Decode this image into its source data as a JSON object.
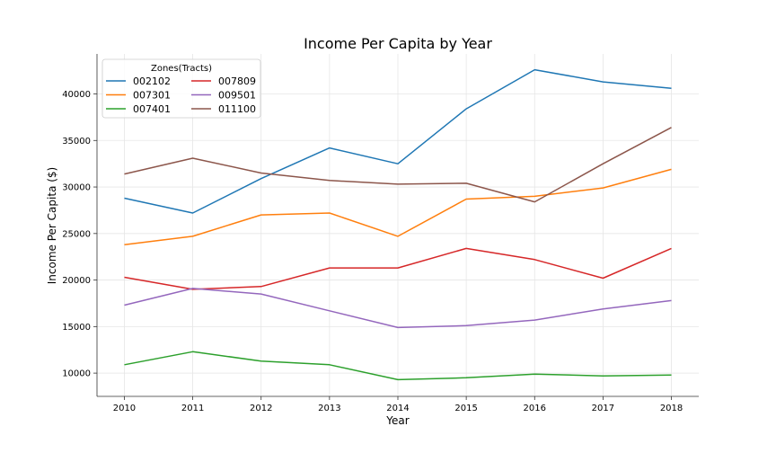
{
  "chart_data": {
    "type": "line",
    "title": "Income Per Capita by Year",
    "xlabel": "Year",
    "ylabel": "Income Per Capita ($)",
    "x": [
      2010,
      2011,
      2012,
      2013,
      2014,
      2015,
      2016,
      2017,
      2018
    ],
    "x_tick_labels": [
      "2010",
      "2011",
      "2012",
      "2013",
      "2014",
      "2015",
      "2016",
      "2017",
      "2018"
    ],
    "y_ticks": [
      10000,
      15000,
      20000,
      25000,
      30000,
      35000,
      40000
    ],
    "y_tick_labels": [
      "10000",
      "15000",
      "20000",
      "25000",
      "30000",
      "35000",
      "40000"
    ],
    "xlim": [
      2009.6,
      2018.4
    ],
    "ylim": [
      7500,
      44300
    ],
    "grid": true,
    "legend": {
      "title": "Zones(Tracts)",
      "placement": "top-left",
      "columns": 2
    },
    "series": [
      {
        "name": "002102",
        "color": "#1f77b4",
        "values": [
          28800,
          27200,
          30900,
          34200,
          32500,
          38400,
          42600,
          41300,
          40600
        ]
      },
      {
        "name": "007301",
        "color": "#ff7f0e",
        "values": [
          23800,
          24700,
          27000,
          27200,
          24700,
          28700,
          29000,
          29900,
          31900
        ]
      },
      {
        "name": "007401",
        "color": "#2ca02c",
        "values": [
          10900,
          12300,
          11300,
          10900,
          9300,
          9500,
          9900,
          9700,
          9800
        ]
      },
      {
        "name": "007809",
        "color": "#d62728",
        "values": [
          20300,
          19000,
          19300,
          21300,
          21300,
          23400,
          22200,
          20200,
          23400
        ]
      },
      {
        "name": "009501",
        "color": "#9467bd",
        "values": [
          17300,
          19100,
          18500,
          16700,
          14900,
          15100,
          15700,
          16900,
          17800
        ]
      },
      {
        "name": "011100",
        "color": "#8c564b",
        "values": [
          31400,
          33100,
          31500,
          30700,
          30300,
          30400,
          28400,
          32500,
          36400
        ]
      }
    ]
  }
}
